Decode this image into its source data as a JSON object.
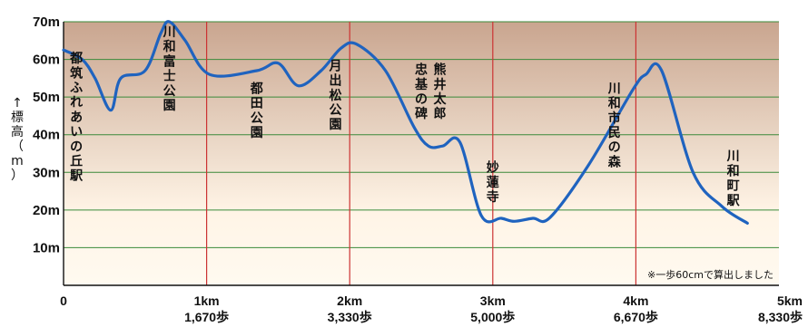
{
  "chart_data": {
    "type": "line",
    "ylabel": "↑標高（m）",
    "note": "※一歩60cmで算出しました",
    "ylim": [
      0,
      70
    ],
    "yticks": [
      "10m",
      "20m",
      "30m",
      "40m",
      "50m",
      "60m",
      "70m"
    ],
    "xlim": [
      0,
      5
    ],
    "xticks": [
      {
        "km": "0",
        "steps": ""
      },
      {
        "km": "1km",
        "steps": "1,670歩"
      },
      {
        "km": "2km",
        "steps": "3,330歩"
      },
      {
        "km": "3km",
        "steps": "5,000歩"
      },
      {
        "km": "4km",
        "steps": "6,670歩"
      },
      {
        "km": "5km",
        "steps": "8,330歩"
      }
    ],
    "x": [
      0,
      0.13,
      0.22,
      0.33,
      0.4,
      0.57,
      0.68,
      0.74,
      0.85,
      1.02,
      1.35,
      1.5,
      1.64,
      1.8,
      1.94,
      2.05,
      2.25,
      2.45,
      2.55,
      2.65,
      2.77,
      2.92,
      3.06,
      3.15,
      3.28,
      3.4,
      3.67,
      3.98,
      4.07,
      4.18,
      4.4,
      4.6,
      4.78
    ],
    "y": [
      62.5,
      60,
      55,
      46.5,
      55,
      57,
      67,
      70,
      65,
      56,
      57,
      59,
      53,
      57,
      63,
      64,
      57,
      42,
      37,
      37,
      38,
      18.5,
      17.8,
      17,
      17.8,
      18,
      32,
      52,
      56,
      57,
      30,
      21,
      16.5
    ],
    "landmarks": [
      {
        "name": "都筑ふれあいの丘駅",
        "x": 0.09,
        "top": 63
      },
      {
        "name": "川和富士公園",
        "x": 0.74,
        "top": 70
      },
      {
        "name": "都田公園",
        "x": 1.35,
        "top": 55
      },
      {
        "name": "月出松公園",
        "x": 1.9,
        "top": 61
      },
      {
        "name": "熊井太郎",
        "x": 2.63,
        "top": 60
      },
      {
        "name": "忠基の碑",
        "x": 2.5,
        "top": 60
      },
      {
        "name": "妙蓮寺",
        "x": 3.0,
        "top": 34
      },
      {
        "name": "川和市民の森",
        "x": 3.85,
        "top": 55
      },
      {
        "name": "川和町駅",
        "x": 4.68,
        "top": 37
      }
    ],
    "grid": true,
    "colors": {
      "line": "#1f63bf",
      "hgrid": "#3a8a3a",
      "vgrid": "#cc3333",
      "band_top": "#c9a58f",
      "band_bottom": "#fffaf0"
    }
  }
}
